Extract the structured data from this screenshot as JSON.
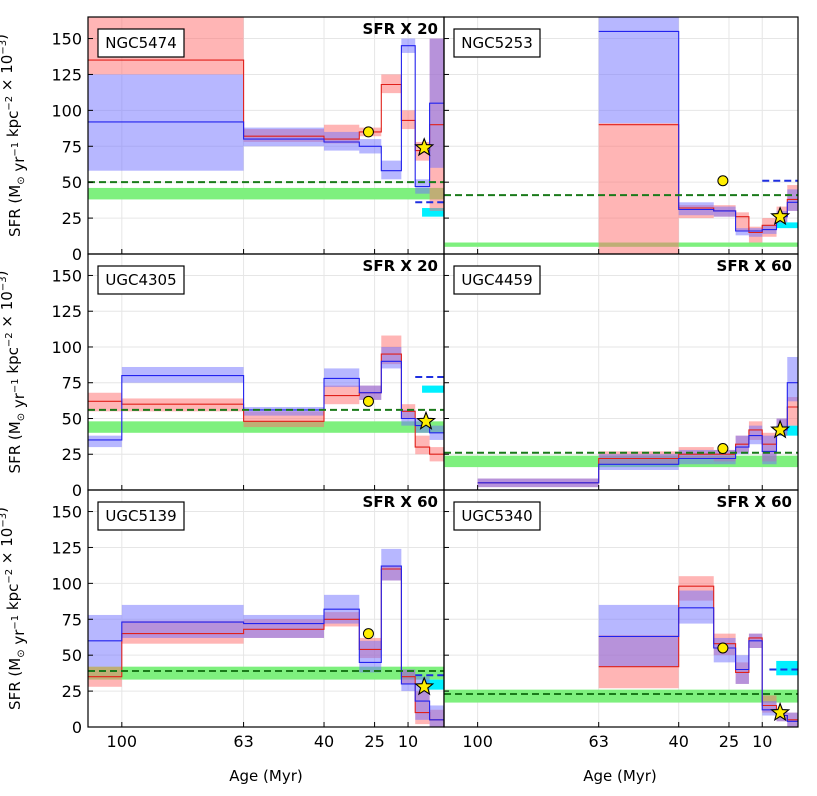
{
  "figure": {
    "xlabel": "Age (Myr)",
    "ylabel_main": "SFR (M",
    "ylabel_sun": "⊙",
    "ylabel_tail": " yr",
    "ylabel_exp1": "−1",
    "ylabel_kpc": " kpc",
    "ylabel_exp2": "−2",
    "ylabel_times": " × 10",
    "ylabel_exp3": "−3",
    "ylabel_close": ")"
  },
  "chart_data": {
    "type": "step-area",
    "x_axis": {
      "label": "Age (Myr)",
      "ticks": [
        100,
        63,
        40,
        25,
        10
      ],
      "range": [
        110,
        0
      ],
      "scale": "piecewise"
    },
    "y_axis": {
      "ticks": [
        0,
        25,
        50,
        75,
        100,
        125,
        150
      ],
      "range": [
        0,
        165
      ]
    },
    "grid": true,
    "panels": [
      {
        "name": "NGC5474",
        "scale_label": "SFR X 20",
        "ylabel": true,
        "xlabels": false,
        "red": {
          "edges": [
            110,
            63,
            40,
            30,
            22,
            13,
            8,
            4,
            0
          ],
          "mid": [
            135,
            82,
            80,
            85,
            118,
            93,
            72,
            90
          ],
          "lo": [
            125,
            78,
            77,
            82,
            112,
            87,
            65,
            30
          ],
          "hi": [
            165,
            87,
            90,
            88,
            125,
            100,
            78,
            150
          ]
        },
        "blue": {
          "edges": [
            110,
            63,
            40,
            30,
            22,
            13,
            8,
            4,
            0
          ],
          "mid": [
            92,
            80,
            78,
            75,
            58,
            145,
            47,
            105
          ],
          "lo": [
            58,
            75,
            72,
            70,
            52,
            140,
            42,
            60
          ],
          "hi": [
            125,
            88,
            85,
            80,
            65,
            150,
            52,
            150
          ]
        },
        "green_line": 50,
        "green_band": [
          38,
          46
        ],
        "cyan_line": 36,
        "cyan_band": [
          26,
          32
        ],
        "circle": {
          "x": 27,
          "y": 85
        },
        "star": {
          "x": 5.5,
          "y": 74
        }
      },
      {
        "name": "NGC5253",
        "scale_label": "",
        "ylabel": false,
        "xlabels": false,
        "red": {
          "edges": [
            63,
            40,
            30,
            22,
            16,
            10,
            6,
            3,
            0
          ],
          "mid": [
            90,
            32,
            30,
            26,
            15,
            20,
            28,
            38
          ],
          "lo": [
            0,
            25,
            26,
            16,
            8,
            12,
            22,
            30
          ],
          "hi": [
            91,
            34,
            34,
            29,
            19,
            25,
            33,
            48
          ]
        },
        "blue": {
          "edges": [
            63,
            40,
            30,
            22,
            16,
            10,
            6,
            3,
            0
          ],
          "mid": [
            155,
            31,
            30,
            16,
            16,
            17,
            26,
            36
          ],
          "lo": [
            91,
            27,
            26,
            13,
            12,
            14,
            22,
            30
          ],
          "hi": [
            170,
            36,
            33,
            18,
            18,
            20,
            30,
            45
          ]
        },
        "green_line": 41,
        "green_band": [
          5,
          8
        ],
        "blue_dash": {
          "x0": 10,
          "x1": 0,
          "y": 51
        },
        "cyan_band": [
          18,
          22
        ],
        "circle": {
          "x": 27,
          "y": 51
        },
        "star": {
          "x": 5,
          "y": 26
        }
      },
      {
        "name": "UGC4305",
        "scale_label": "SFR X 20",
        "ylabel": true,
        "xlabels": false,
        "red": {
          "edges": [
            110,
            100,
            63,
            40,
            30,
            22,
            13,
            8,
            4,
            0
          ],
          "mid": [
            62,
            60,
            48,
            66,
            68,
            95,
            55,
            30,
            25
          ],
          "lo": [
            55,
            55,
            44,
            60,
            63,
            88,
            50,
            25,
            20
          ],
          "hi": [
            68,
            64,
            55,
            73,
            73,
            108,
            60,
            38,
            30
          ]
        },
        "blue": {
          "edges": [
            110,
            100,
            63,
            40,
            30,
            22,
            13,
            8,
            4,
            0
          ],
          "mid": [
            35,
            80,
            56,
            78,
            68,
            90,
            50,
            45,
            40
          ],
          "lo": [
            30,
            75,
            52,
            72,
            63,
            85,
            45,
            40,
            35
          ],
          "hi": [
            38,
            86,
            58,
            85,
            73,
            100,
            56,
            50,
            45
          ]
        },
        "green_line": 56,
        "green_band": [
          40,
          48
        ],
        "blue_dash": {
          "x0": 8,
          "x1": 0,
          "y": 79
        },
        "cyan_band": [
          68,
          73
        ],
        "circle": {
          "x": 27,
          "y": 62
        },
        "star": {
          "x": 5,
          "y": 48
        }
      },
      {
        "name": "UGC4459",
        "scale_label": "SFR X 60",
        "ylabel": false,
        "xlabels": false,
        "red": {
          "edges": [
            100,
            63,
            40,
            30,
            22,
            16,
            10,
            6,
            3,
            0
          ],
          "mid": [
            5,
            22,
            25,
            25,
            32,
            42,
            32,
            44,
            58
          ],
          "lo": [
            2,
            18,
            22,
            20,
            26,
            35,
            20,
            38,
            45
          ],
          "hi": [
            8,
            27,
            30,
            28,
            38,
            48,
            40,
            50,
            65
          ]
        },
        "blue": {
          "edges": [
            100,
            63,
            40,
            30,
            22,
            16,
            10,
            6,
            3,
            0
          ],
          "mid": [
            5,
            18,
            22,
            22,
            30,
            38,
            27,
            42,
            75
          ],
          "lo": [
            2,
            14,
            18,
            18,
            25,
            32,
            18,
            38,
            62
          ],
          "hi": [
            8,
            25,
            28,
            28,
            38,
            45,
            38,
            50,
            93
          ]
        },
        "green_line": 26,
        "green_band": [
          16,
          24
        ],
        "cyan_band": [
          38,
          45
        ],
        "circle": {
          "x": 27,
          "y": 29
        },
        "star": {
          "x": 5,
          "y": 42
        }
      },
      {
        "name": "UGC5139",
        "scale_label": "SFR X 60",
        "ylabel": true,
        "xlabels": true,
        "red": {
          "edges": [
            110,
            100,
            63,
            40,
            30,
            22,
            13,
            8,
            4,
            0
          ],
          "mid": [
            35,
            65,
            68,
            75,
            54,
            110,
            35,
            10,
            5
          ],
          "lo": [
            28,
            58,
            62,
            70,
            48,
            102,
            30,
            2,
            0
          ],
          "hi": [
            42,
            74,
            75,
            80,
            62,
            112,
            40,
            25,
            12
          ]
        },
        "blue": {
          "edges": [
            110,
            100,
            63,
            40,
            30,
            22,
            13,
            8,
            4,
            0
          ],
          "mid": [
            60,
            73,
            72,
            82,
            45,
            112,
            30,
            18,
            5
          ],
          "lo": [
            42,
            62,
            62,
            72,
            38,
            102,
            25,
            5,
            0
          ],
          "hi": [
            78,
            85,
            78,
            92,
            60,
            124,
            40,
            35,
            15
          ]
        },
        "green_line": 39,
        "green_band": [
          33,
          42
        ],
        "cyan_band": [
          26,
          33
        ],
        "cyan_line": 36,
        "circle": {
          "x": 27,
          "y": 65
        },
        "star": {
          "x": 5.5,
          "y": 28
        }
      },
      {
        "name": "UGC5340",
        "scale_label": "SFR X 60",
        "ylabel": false,
        "xlabels": true,
        "red": {
          "edges": [
            63,
            40,
            30,
            22,
            16,
            10,
            6,
            3,
            0
          ],
          "mid": [
            42,
            98,
            58,
            38,
            62,
            15,
            8,
            5
          ],
          "lo": [
            27,
            88,
            50,
            30,
            55,
            10,
            4,
            0
          ],
          "hi": [
            64,
            105,
            65,
            45,
            65,
            22,
            12,
            10
          ]
        },
        "blue": {
          "edges": [
            63,
            40,
            30,
            22,
            16,
            10,
            6,
            3,
            0
          ],
          "mid": [
            63,
            83,
            55,
            40,
            60,
            12,
            8,
            4
          ],
          "lo": [
            42,
            72,
            45,
            30,
            55,
            8,
            4,
            0
          ],
          "hi": [
            85,
            95,
            62,
            50,
            65,
            18,
            12,
            10
          ]
        },
        "green_line": 23,
        "green_band": [
          17,
          26
        ],
        "cyan_line": 40,
        "cyan_band": [
          36,
          46
        ],
        "circle": {
          "x": 27,
          "y": 55
        },
        "star": {
          "x": 5,
          "y": 10
        }
      }
    ]
  }
}
